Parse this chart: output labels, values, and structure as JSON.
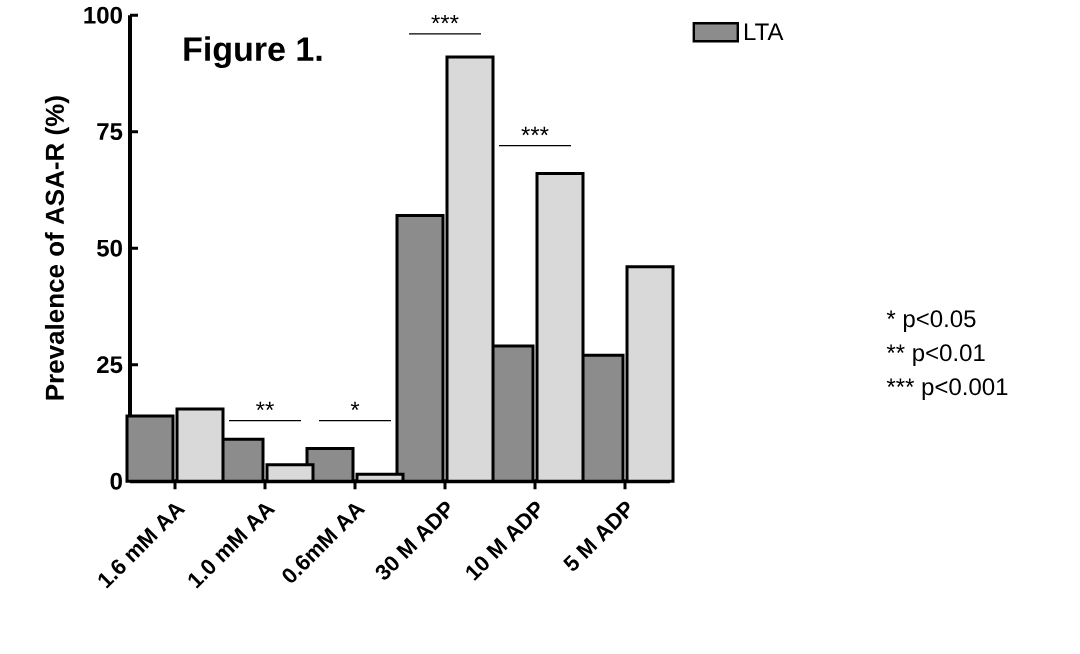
{
  "chart_data": {
    "type": "bar",
    "title": "Figure 1.",
    "ylabel": "Prevalence of ASA-R (%)",
    "categories": [
      "1.6 mM AA",
      "1.0 mM AA",
      "0.6mM AA",
      "30  M ADP",
      "10  M ADP",
      "5  M ADP"
    ],
    "series": [
      {
        "name": "LTA",
        "color": "#8c8c8c",
        "values": [
          14,
          9,
          7,
          57,
          29,
          27
        ]
      },
      {
        "color": "#d9d9d9",
        "values": [
          15.5,
          3.5,
          1.5,
          91,
          66,
          46
        ]
      }
    ],
    "ylim": [
      0,
      100
    ],
    "yticks": [
      0,
      25,
      50,
      75,
      100
    ],
    "legend": "top right",
    "annotations": [
      "**",
      "*",
      "***",
      "***",
      "* p<0.05",
      "** p<0.01",
      "*** p<0.001"
    ]
  }
}
